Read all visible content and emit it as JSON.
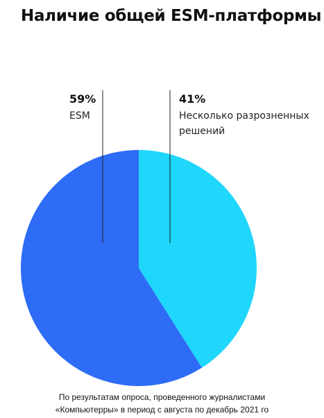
{
  "chart_data": {
    "type": "pie",
    "title": "Наличие общей ESM-платформы",
    "categories": [
      "ESM",
      "Несколько разрозненных решений"
    ],
    "values": [
      59,
      41
    ],
    "value_labels": [
      "59%",
      "41%"
    ],
    "colors": [
      "#2e6cf6",
      "#1fd6fb"
    ],
    "caption": [
      "По результатам опроса, проведенного журналистами",
      "«Компьютерры» в период с августа по декабрь 2021 го"
    ]
  }
}
